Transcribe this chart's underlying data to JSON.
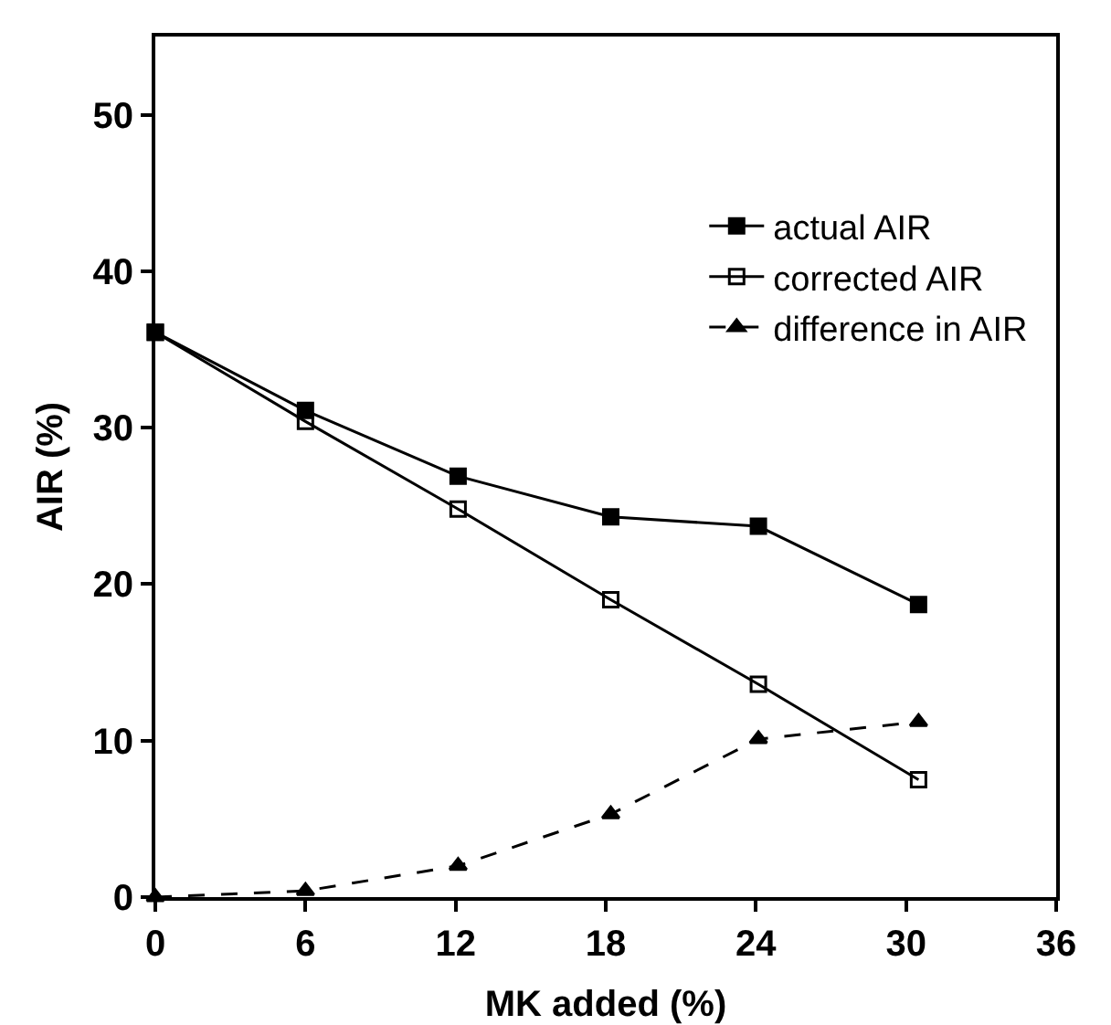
{
  "chart_data": {
    "type": "line",
    "xlabel": "MK added (%)",
    "ylabel": "AIR (%)",
    "x": [
      0,
      6,
      12.1,
      18.2,
      24.1,
      30.5
    ],
    "series": [
      {
        "name": "actual AIR",
        "color": "#000000",
        "marker": "square",
        "line_style": "solid",
        "values": [
          36.1,
          31.1,
          26.9,
          24.3,
          23.7,
          18.7
        ]
      },
      {
        "name": "corrected AIR",
        "color": "#000000",
        "marker": "square",
        "line_style": "solid",
        "values": [
          36.1,
          30.4,
          24.8,
          19.0,
          13.6,
          7.5
        ]
      },
      {
        "name": "difference in AIR",
        "color": "#000000",
        "marker": "triangle",
        "line_style": "dashed",
        "values": [
          0,
          0.4,
          2.0,
          5.3,
          10.1,
          11.2
        ]
      }
    ],
    "xlim": [
      0,
      36
    ],
    "xticks": [
      0,
      6,
      12,
      18,
      24,
      30,
      36
    ],
    "ylim": [
      0,
      55
    ],
    "yticks": [
      0,
      10,
      20,
      30,
      40,
      50
    ],
    "grid": false,
    "legend": "top right"
  }
}
